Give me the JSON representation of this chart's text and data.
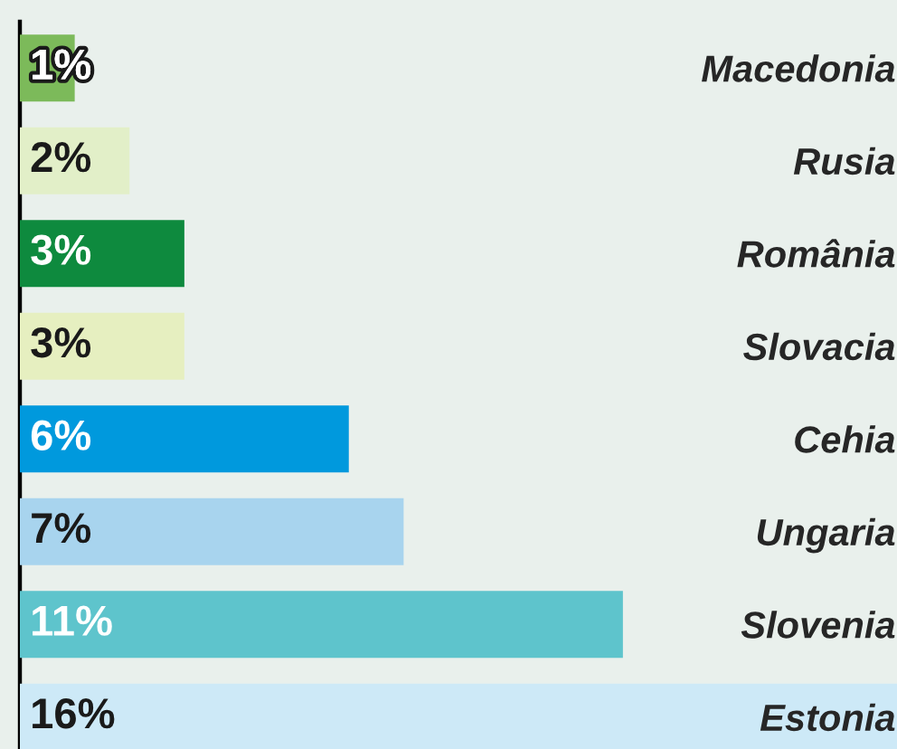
{
  "chart_data": {
    "type": "bar",
    "orientation": "horizontal",
    "tick_labels": "y",
    "categories": [
      "Macedonia",
      "Rusia",
      "România",
      "Slovacia",
      "Cehia",
      "Ungaria",
      "Slovenia",
      "Estonia"
    ],
    "values": [
      1,
      2,
      3,
      3,
      6,
      7,
      11,
      16
    ],
    "value_labels": [
      "1%",
      "2%",
      "3%",
      "3%",
      "6%",
      "7%",
      "11%",
      "16%"
    ],
    "colors": [
      "#7cba5a",
      "#e2efc8",
      "#0e8a3e",
      "#e6efc0",
      "#0099dd",
      "#a8d4ee",
      "#5ec4cc",
      "#cde9f7"
    ]
  }
}
